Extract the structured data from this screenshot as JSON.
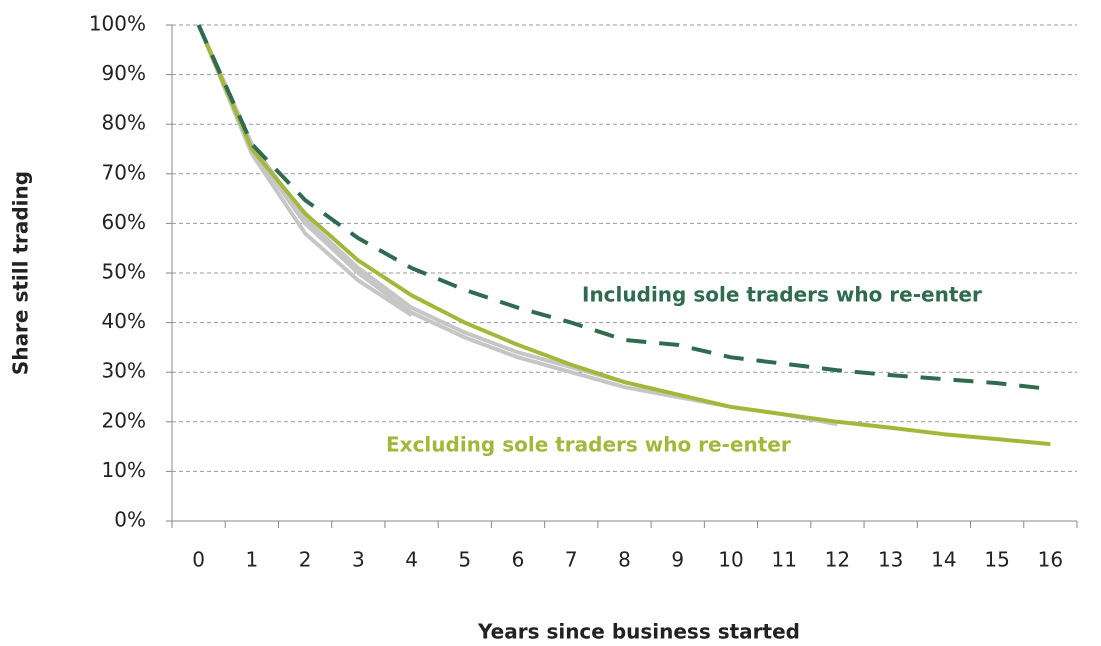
{
  "chart_data": {
    "type": "line",
    "x_label": "Years since business started",
    "y_label": "Share still trading",
    "categories": [
      "0",
      "1",
      "2",
      "3",
      "4",
      "5",
      "6",
      "7",
      "8",
      "9",
      "10",
      "11",
      "12",
      "13",
      "14",
      "15",
      "16"
    ],
    "ylim": [
      0,
      100
    ],
    "yticks": [
      {
        "value": 0,
        "label": "0%"
      },
      {
        "value": 10,
        "label": "10%"
      },
      {
        "value": 20,
        "label": "20%"
      },
      {
        "value": 30,
        "label": "30%"
      },
      {
        "value": 40,
        "label": "40%"
      },
      {
        "value": 50,
        "label": "50%"
      },
      {
        "value": 60,
        "label": "60%"
      },
      {
        "value": 70,
        "label": "70%"
      },
      {
        "value": 80,
        "label": "80%"
      },
      {
        "value": 90,
        "label": "90%"
      },
      {
        "value": 100,
        "label": "100%"
      }
    ],
    "grid": true,
    "series": [
      {
        "color": "#c6c6c6",
        "values": [
          100,
          74,
          58,
          48.5,
          41.5,
          null,
          null,
          null,
          null,
          null,
          null,
          null,
          null,
          null,
          null,
          null,
          null
        ]
      },
      {
        "color": "#c6c6c6",
        "values": [
          100,
          75,
          60,
          50,
          42,
          37,
          33,
          30,
          27,
          25,
          23,
          21.5,
          19.5,
          null,
          null,
          null,
          null
        ]
      },
      {
        "color": "#c6c6c6",
        "values": [
          100,
          76,
          61,
          51,
          43,
          38,
          34,
          31,
          28,
          null,
          null,
          null,
          null,
          null,
          null,
          null,
          null
        ]
      },
      {
        "color": "#a3b83a",
        "values": [
          100,
          75,
          62,
          52.5,
          45.5,
          40,
          35.5,
          31.5,
          28,
          25.5,
          23,
          21.5,
          20,
          18.8,
          17.5,
          16.5,
          15.5
        ]
      },
      {
        "color": "#2e6b4f",
        "dashed": true,
        "values": [
          100,
          76,
          64.7,
          57,
          51,
          46.6,
          43,
          40,
          36.5,
          35.5,
          33,
          31.7,
          30.4,
          29.4,
          28.6,
          27.8,
          26.6
        ]
      }
    ],
    "annotations": [
      {
        "text": "Including sole traders who re-enter",
        "color": "#2e6b4f"
      },
      {
        "text": "Excluding sole traders who re-enter",
        "color": "#a3b83a"
      }
    ]
  }
}
